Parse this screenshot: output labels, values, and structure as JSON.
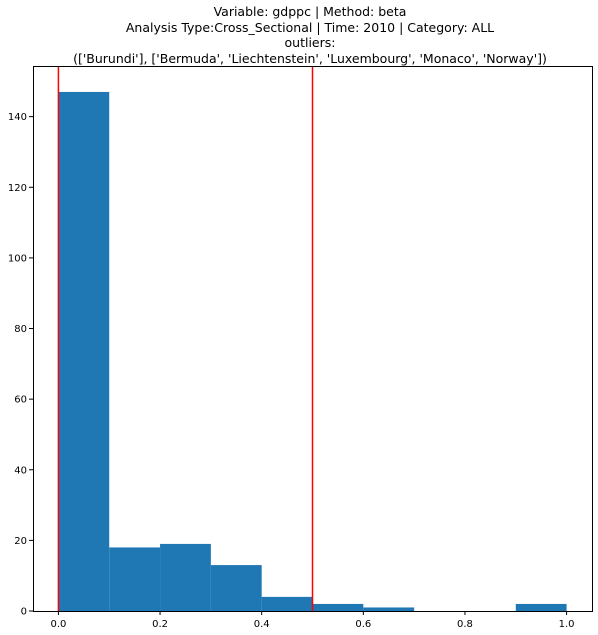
{
  "chart_data": {
    "type": "bar",
    "title_lines": [
      "Variable: gdppc | Method: beta",
      "Analysis Type:Cross_Sectional | Time: 2010 | Category: ALL",
      "outliers:",
      "(['Burundi'], ['Bermuda', 'Liechtenstein', 'Luxembourg', 'Monaco', 'Norway'])"
    ],
    "bins": [
      {
        "start": 0.0,
        "end": 0.1,
        "count": 147
      },
      {
        "start": 0.1,
        "end": 0.2,
        "count": 18
      },
      {
        "start": 0.2,
        "end": 0.3,
        "count": 19
      },
      {
        "start": 0.3,
        "end": 0.4,
        "count": 13
      },
      {
        "start": 0.4,
        "end": 0.5,
        "count": 4
      },
      {
        "start": 0.5,
        "end": 0.6,
        "count": 2
      },
      {
        "start": 0.6,
        "end": 0.7,
        "count": 1
      },
      {
        "start": 0.7,
        "end": 0.8,
        "count": 0
      },
      {
        "start": 0.8,
        "end": 0.9,
        "count": 0
      },
      {
        "start": 0.9,
        "end": 1.0,
        "count": 2
      }
    ],
    "vlines": [
      0.0,
      0.5
    ],
    "vline_color": "#ff0000",
    "bar_color": "#1f77b4",
    "xlim": [
      -0.05,
      1.05
    ],
    "ylim": [
      0,
      154.35
    ],
    "xticks": [
      0.0,
      0.2,
      0.4,
      0.6,
      0.8,
      1.0
    ],
    "xtick_labels": [
      "0.0",
      "0.2",
      "0.4",
      "0.6",
      "0.8",
      "1.0"
    ],
    "yticks": [
      0,
      20,
      40,
      60,
      80,
      100,
      120,
      140
    ],
    "ytick_labels": [
      "0",
      "20",
      "40",
      "60",
      "80",
      "100",
      "120",
      "140"
    ],
    "grid": false,
    "xlabel": "",
    "ylabel": ""
  }
}
